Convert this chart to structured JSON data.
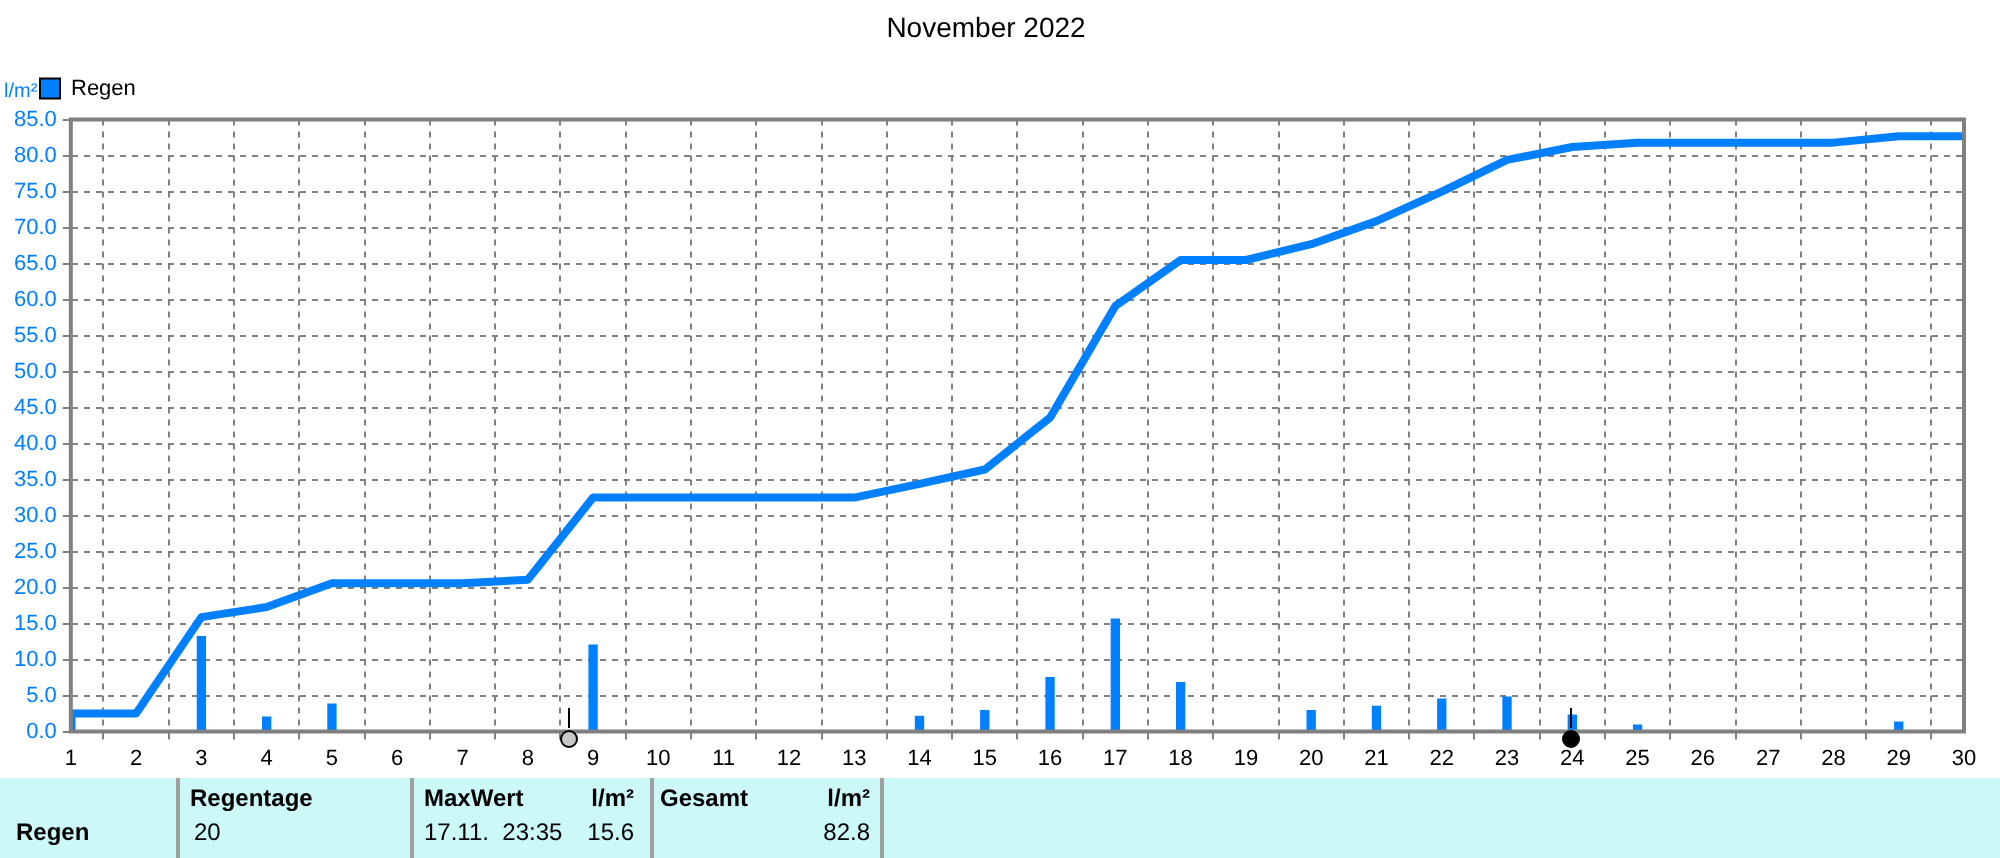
{
  "chart_data": {
    "type": "line",
    "title": "November 2022",
    "ylabel": "l/m²",
    "xlim": [
      1,
      30
    ],
    "xticks": [
      1,
      2,
      3,
      4,
      5,
      6,
      7,
      8,
      9,
      10,
      11,
      12,
      13,
      14,
      15,
      16,
      17,
      18,
      19,
      20,
      21,
      22,
      23,
      24,
      25,
      26,
      27,
      28,
      29,
      30
    ],
    "ylim": [
      0,
      85
    ],
    "yticks": [
      {
        "value": 0,
        "label": "0.0"
      },
      {
        "value": 5,
        "label": "5.0"
      },
      {
        "value": 10,
        "label": "10.0"
      },
      {
        "value": 15,
        "label": "15.0"
      },
      {
        "value": 20,
        "label": "20.0"
      },
      {
        "value": 25,
        "label": "25.0"
      },
      {
        "value": 30,
        "label": "30.0"
      },
      {
        "value": 35,
        "label": "35.0"
      },
      {
        "value": 40,
        "label": "40.0"
      },
      {
        "value": 45,
        "label": "45.0"
      },
      {
        "value": 50,
        "label": "50.0"
      },
      {
        "value": 55,
        "label": "55.0"
      },
      {
        "value": 60,
        "label": "60.0"
      },
      {
        "value": 65,
        "label": "65.0"
      },
      {
        "value": 70,
        "label": "70.0"
      },
      {
        "value": 75,
        "label": "75.0"
      },
      {
        "value": 80,
        "label": "80.0"
      },
      {
        "value": 85,
        "label": "85.0"
      }
    ],
    "grid": true,
    "legend": "top left",
    "marker": "none",
    "series": [
      {
        "name": "Regen",
        "type": "bar",
        "color": "#0080ff",
        "x": [
          1,
          3,
          4,
          5,
          7,
          9,
          10,
          14,
          15,
          16,
          17,
          18,
          19,
          20,
          21,
          22,
          23,
          24,
          25,
          29
        ],
        "values": [
          2.5,
          13.2,
          2.0,
          3.8,
          null,
          12.0,
          null,
          2.1,
          2.9,
          7.5,
          15.6,
          6.8,
          null,
          2.9,
          3.5,
          4.5,
          4.8,
          2.3,
          0.9,
          1.3
        ]
      },
      {
        "color": "#0080ff",
        "x": [
          1,
          2,
          3,
          4,
          5,
          6,
          7,
          8,
          9,
          10,
          11,
          12,
          13,
          14,
          15,
          16,
          17,
          18,
          19,
          20,
          21,
          22,
          23,
          24,
          25,
          26,
          27,
          28,
          29,
          30
        ],
        "values": [
          2.5,
          2.5,
          15.9,
          17.3,
          20.6,
          20.6,
          20.6,
          21.1,
          32.5,
          32.5,
          32.5,
          32.5,
          32.5,
          34.4,
          36.4,
          43.6,
          59.1,
          65.5,
          65.5,
          67.7,
          70.9,
          75.0,
          79.4,
          81.2,
          81.8,
          81.8,
          81.8,
          81.8,
          82.7,
          82.7
        ]
      }
    ],
    "annotations": [
      "Regen",
      "Regentage",
      "20",
      "MaxWert",
      "l/m²",
      "17.11.  23:35",
      "15.6",
      "Gesamt",
      "l/m²",
      "82.8"
    ]
  }
}
